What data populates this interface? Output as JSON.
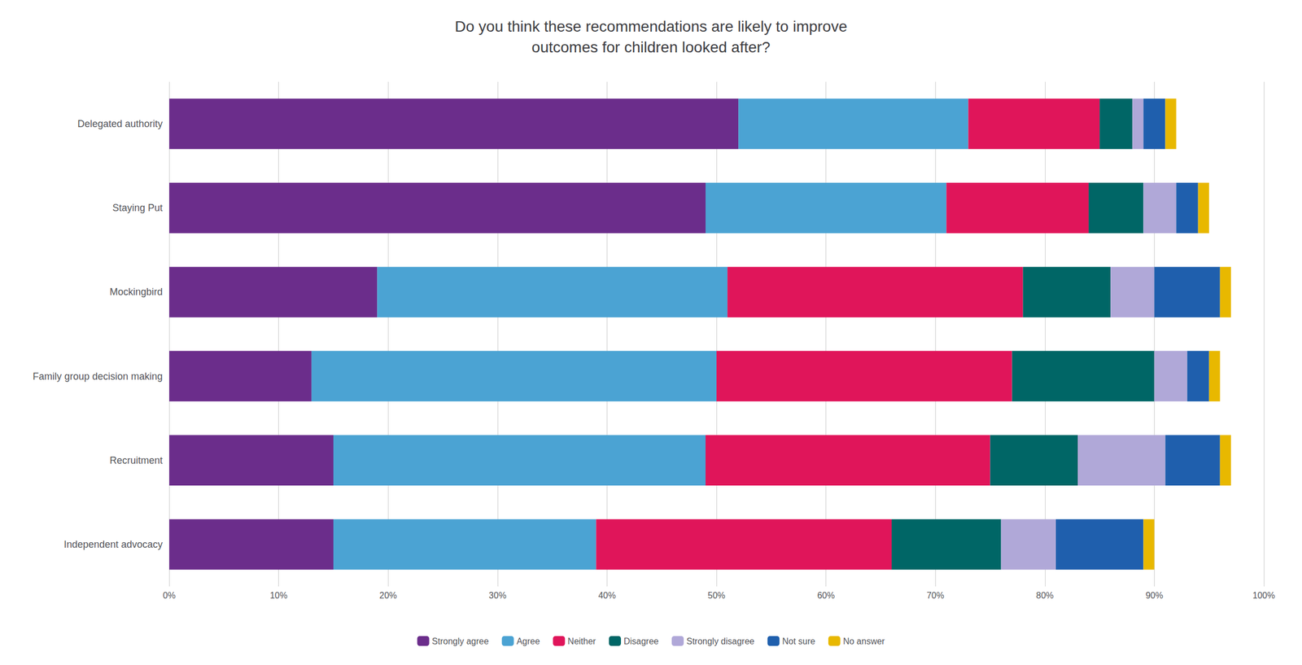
{
  "chart_data": {
    "type": "bar",
    "orientation": "horizontal",
    "stacked": true,
    "title": "Do you think these recommendations are likely to improve\noutcomes for children looked after?",
    "categories": [
      "Delegated authority",
      "Staying Put",
      "Mockingbird",
      "Family group decision making",
      "Recruitment",
      "Independent advocacy"
    ],
    "series": [
      {
        "name": "Strongly agree",
        "color": "#6B2D8B",
        "values": [
          52,
          49,
          19,
          13,
          15,
          15
        ]
      },
      {
        "name": "Agree",
        "color": "#4BA3D3",
        "values": [
          21,
          22,
          32,
          37,
          34,
          24
        ]
      },
      {
        "name": "Neither",
        "color": "#E0155A",
        "values": [
          12,
          13,
          27,
          27,
          26,
          27
        ]
      },
      {
        "name": "Disagree",
        "color": "#006666",
        "values": [
          3,
          5,
          8,
          13,
          8,
          10
        ]
      },
      {
        "name": "Strongly disagree",
        "color": "#B0A8D8",
        "values": [
          1,
          3,
          4,
          3,
          8,
          5
        ]
      },
      {
        "name": "Not sure",
        "color": "#1F5FAD",
        "values": [
          2,
          2,
          6,
          2,
          5,
          8
        ]
      },
      {
        "name": "No answer",
        "color": "#E8B800",
        "values": [
          1,
          1,
          1,
          1,
          1,
          1
        ]
      }
    ],
    "xlim": [
      0,
      100
    ],
    "xticks": [
      {
        "value": 0,
        "label": "0%"
      },
      {
        "value": 10,
        "label": "10%"
      },
      {
        "value": 20,
        "label": "20%"
      },
      {
        "value": 30,
        "label": "30%"
      },
      {
        "value": 40,
        "label": "40%"
      },
      {
        "value": 50,
        "label": "50%"
      },
      {
        "value": 60,
        "label": "60%"
      },
      {
        "value": 70,
        "label": "70%"
      },
      {
        "value": 80,
        "label": "80%"
      },
      {
        "value": 90,
        "label": "90%"
      },
      {
        "value": 100,
        "label": "100%"
      }
    ],
    "grid": true,
    "legend": "bottom"
  }
}
